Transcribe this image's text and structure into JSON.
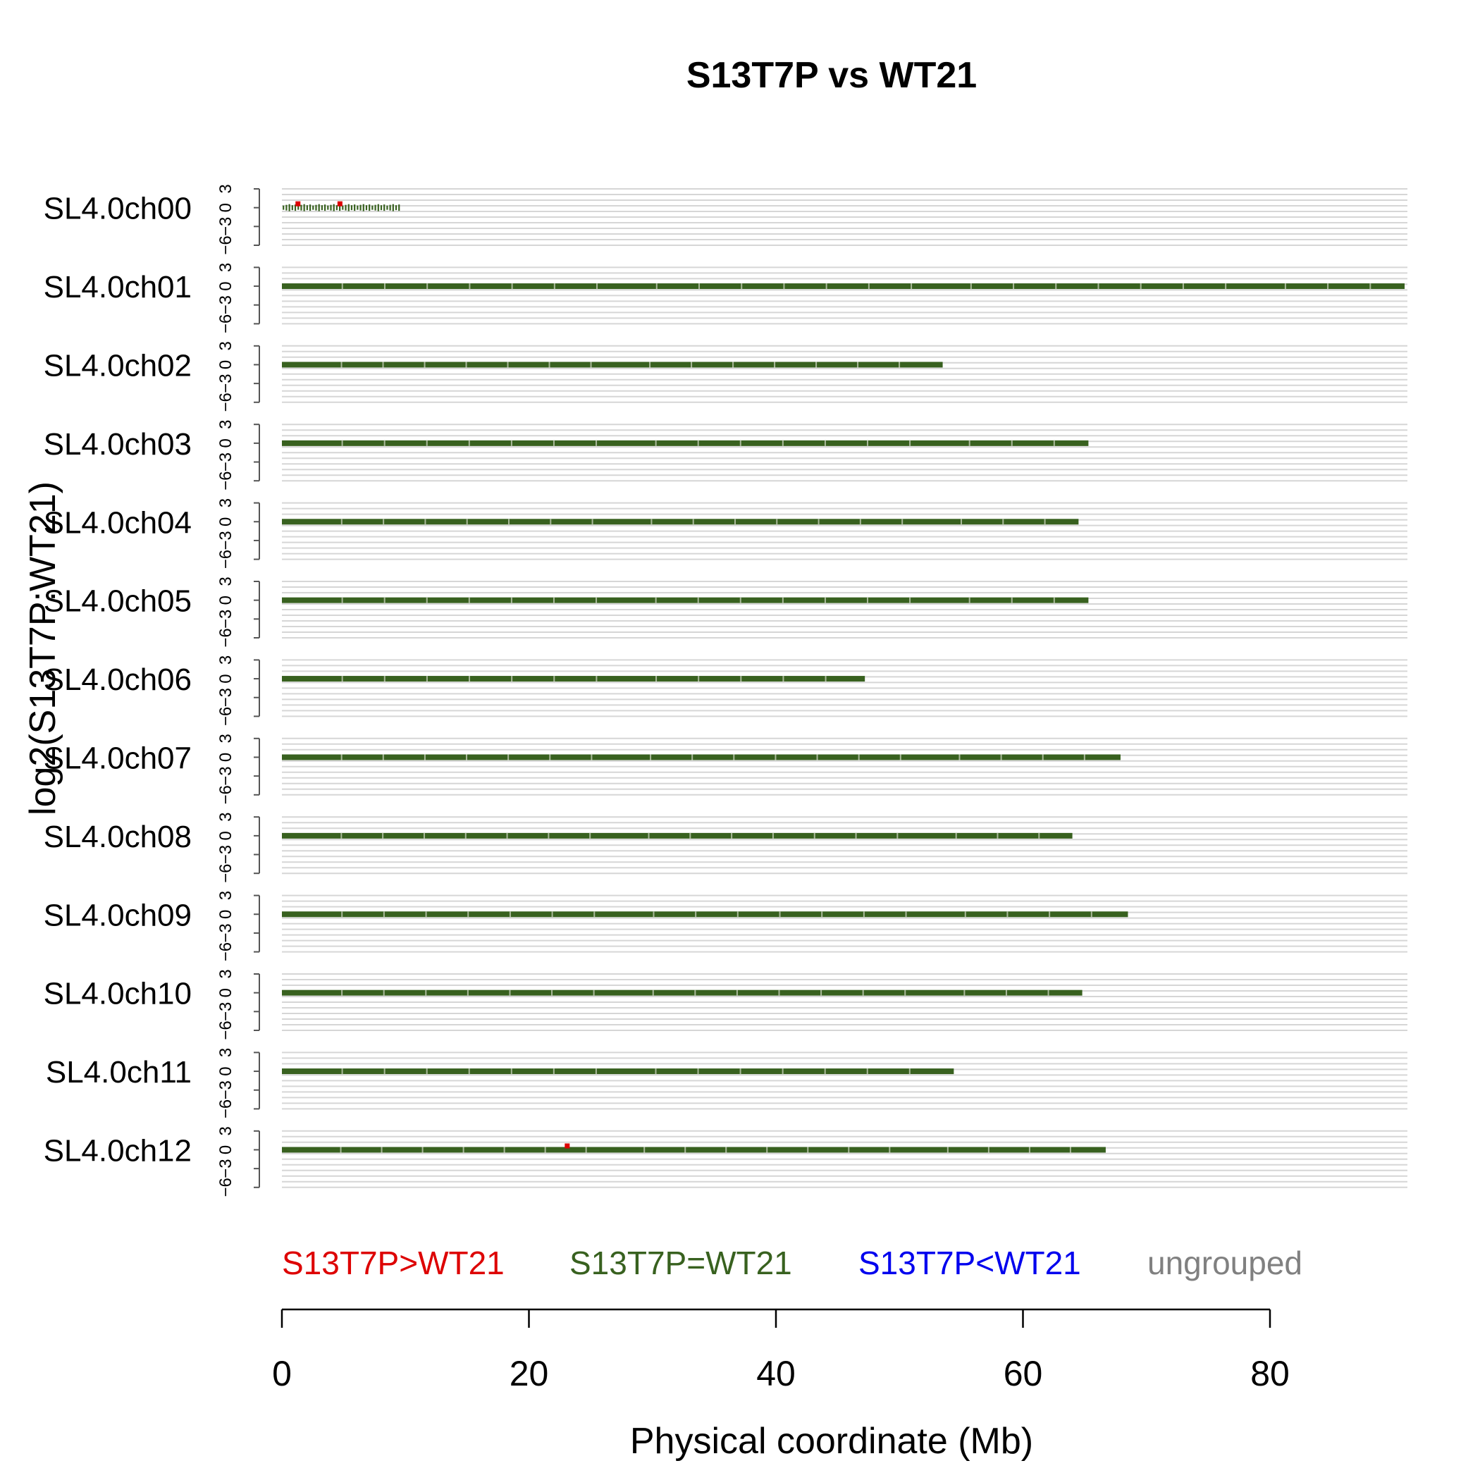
{
  "chart_data": {
    "type": "scatter",
    "title": "S13T7P vs WT21",
    "xlabel": "Physical coordinate (Mb)",
    "ylabel": "log2(S13T7P:WT21)",
    "xlim": [
      0,
      91
    ],
    "xticks": [
      0,
      20,
      40,
      60,
      80
    ],
    "ylim": [
      -6,
      3
    ],
    "yticks": [
      3,
      0,
      -3,
      -6
    ],
    "grid": true,
    "legend_position": "bottom",
    "legend": [
      {
        "label": "S13T7P>WT21",
        "color": "#dd0000"
      },
      {
        "label": "S13T7P=WT21",
        "color": "#38611f"
      },
      {
        "label": "S13T7P<WT21",
        "color": "#0000ee"
      },
      {
        "label": "ungrouped",
        "color": "#808080"
      }
    ],
    "chromosomes": [
      {
        "name": "SL4.0ch00",
        "length_mb": 9.6,
        "log2_ratio": 0,
        "sparse": true,
        "red_points_mb": [
          1.3,
          4.7
        ]
      },
      {
        "name": "SL4.0ch01",
        "length_mb": 90.9,
        "log2_ratio": 0,
        "sparse": false,
        "red_points_mb": []
      },
      {
        "name": "SL4.0ch02",
        "length_mb": 53.5,
        "log2_ratio": 0,
        "sparse": false,
        "red_points_mb": []
      },
      {
        "name": "SL4.0ch03",
        "length_mb": 65.3,
        "log2_ratio": 0,
        "sparse": false,
        "red_points_mb": []
      },
      {
        "name": "SL4.0ch04",
        "length_mb": 64.5,
        "log2_ratio": 0,
        "sparse": false,
        "red_points_mb": []
      },
      {
        "name": "SL4.0ch05",
        "length_mb": 65.3,
        "log2_ratio": 0,
        "sparse": false,
        "red_points_mb": []
      },
      {
        "name": "SL4.0ch06",
        "length_mb": 47.2,
        "log2_ratio": 0,
        "sparse": false,
        "red_points_mb": []
      },
      {
        "name": "SL4.0ch07",
        "length_mb": 67.9,
        "log2_ratio": 0,
        "sparse": false,
        "red_points_mb": []
      },
      {
        "name": "SL4.0ch08",
        "length_mb": 64.0,
        "log2_ratio": 0,
        "sparse": false,
        "red_points_mb": []
      },
      {
        "name": "SL4.0ch09",
        "length_mb": 68.5,
        "log2_ratio": 0,
        "sparse": false,
        "red_points_mb": []
      },
      {
        "name": "SL4.0ch10",
        "length_mb": 64.8,
        "log2_ratio": 0,
        "sparse": false,
        "red_points_mb": []
      },
      {
        "name": "SL4.0ch11",
        "length_mb": 54.4,
        "log2_ratio": 0,
        "sparse": false,
        "red_points_mb": []
      },
      {
        "name": "SL4.0ch12",
        "length_mb": 66.7,
        "log2_ratio": 0,
        "sparse": false,
        "red_points_mb": [
          23.1
        ]
      }
    ]
  }
}
